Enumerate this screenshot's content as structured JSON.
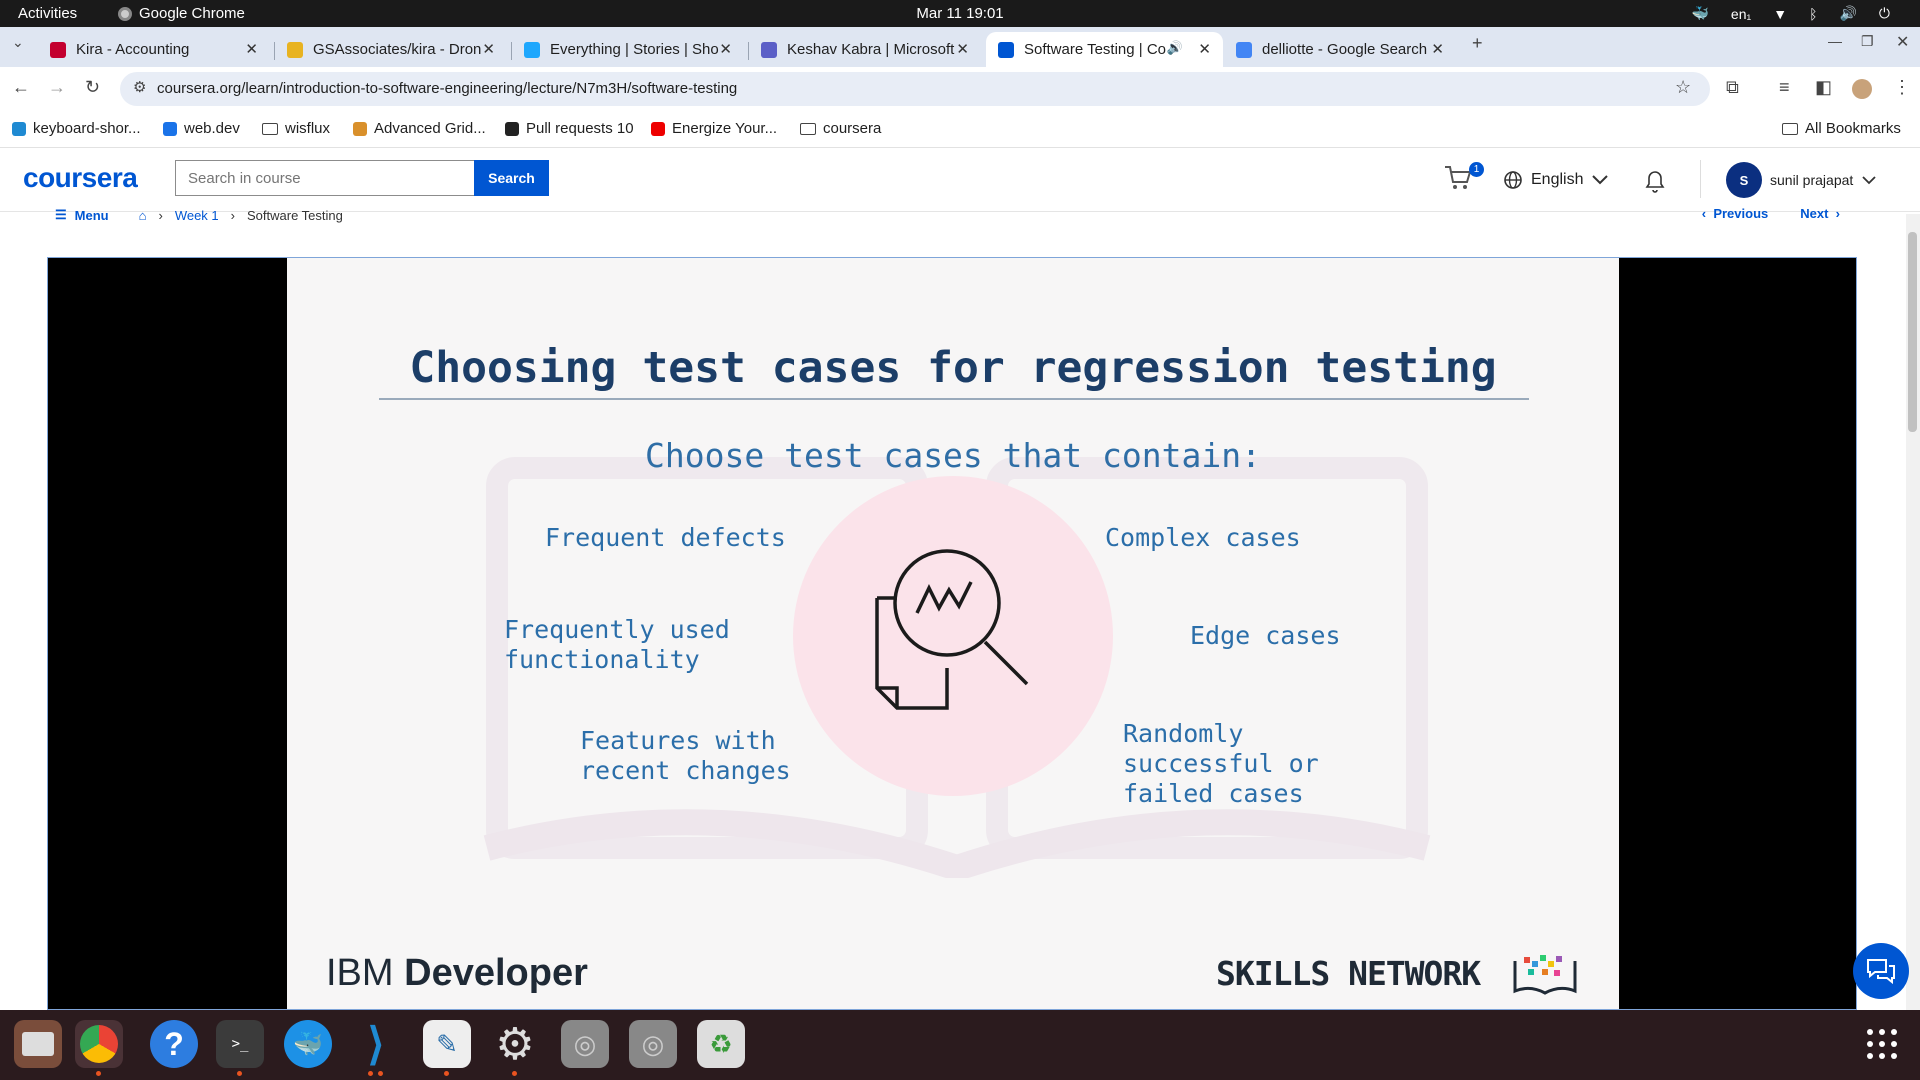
{
  "system": {
    "activities": "Activities",
    "app_name": "Google Chrome",
    "clock": "Mar 11  19:01",
    "input_method": "en₁"
  },
  "tabs": [
    {
      "title": "Kira - Accounting",
      "icon": "angular-icon",
      "color": "#c3002f"
    },
    {
      "title": "GSAssociates/kira - Dron",
      "icon": "drone-icon",
      "color": "#e8b321"
    },
    {
      "title": "Everything | Stories | Sho",
      "icon": "storybook-icon",
      "color": "#1ea7fd"
    },
    {
      "title": "Keshav Kabra | Microsoft",
      "icon": "teams-icon",
      "color": "#5b5fc7"
    },
    {
      "title": "Software Testing | Co",
      "icon": "coursera-icon",
      "color": "#0056d2",
      "active": true
    },
    {
      "title": "delliotte - Google Search",
      "icon": "google-icon",
      "color": "#4285f4"
    }
  ],
  "address_bar": {
    "url": "coursera.org/learn/introduction-to-software-engineering/lecture/N7m3H/software-testing"
  },
  "bookmarks": [
    {
      "label": "keyboard-shor...",
      "icon": "vscode-icon"
    },
    {
      "label": "web.dev",
      "icon": "webdev-icon"
    },
    {
      "label": "wisflux",
      "icon": "folder-icon"
    },
    {
      "label": "Advanced Grid...",
      "icon": "aggrid-icon"
    },
    {
      "label": "Pull requests 10",
      "icon": "github-icon"
    },
    {
      "label": "Energize Your...",
      "icon": "youtube-icon"
    },
    {
      "label": "coursera",
      "icon": "folder-icon"
    }
  ],
  "all_bookmarks": "All Bookmarks",
  "coursera": {
    "logo": "coursera",
    "search_placeholder": "Search in course",
    "search_button": "Search",
    "cart_count": "1",
    "language": "English",
    "user_initial": "S",
    "user_name": "sunil prajapat"
  },
  "breadcrumb": {
    "menu": "Menu",
    "week": "Week 1",
    "current": "Software Testing",
    "previous": "Previous",
    "next": "Next"
  },
  "slide": {
    "title": "Choosing test cases for regression testing",
    "subtitle": "Choose test cases that contain:",
    "left_items": [
      "Frequent defects",
      "Frequently used\nfunctionality",
      "Features with\nrecent changes"
    ],
    "right_items": [
      "Complex cases",
      "Edge cases",
      "Randomly\nsuccessful or\nfailed cases"
    ],
    "brand_left_light": "IBM ",
    "brand_left_bold": "Developer",
    "brand_right": "SKILLS NETWORK"
  },
  "colors": {
    "coursera_blue": "#0056d2",
    "slide_title": "#1c3e68",
    "slide_text": "#2b6ea9"
  }
}
